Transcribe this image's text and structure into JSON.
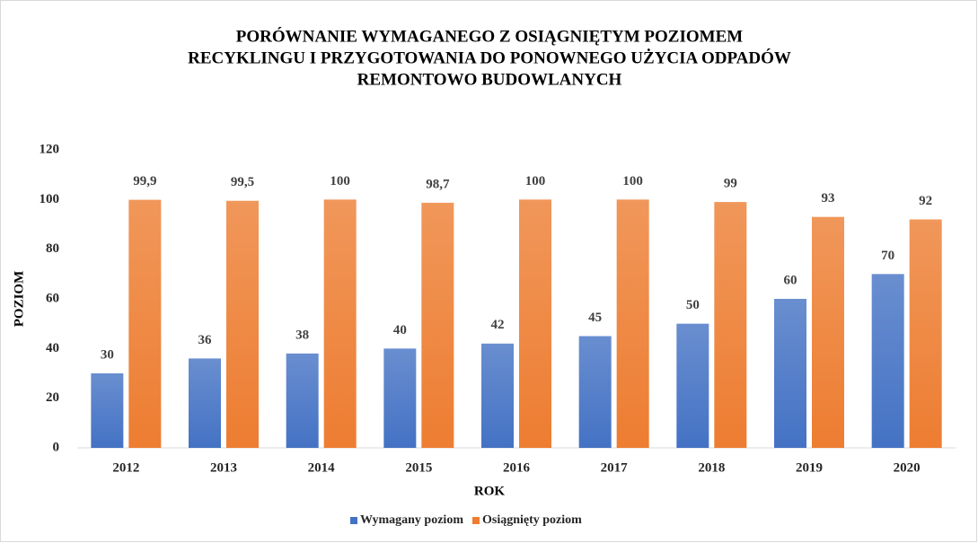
{
  "chart_data": {
    "type": "bar",
    "title": [
      "PORÓWNANIE WYMAGANEGO Z OSIĄGNIĘTYM POZIOMEM",
      "RECYKLINGU I PRZYGOTOWANIA DO PONOWNEGO UŻYCIA ODPADÓW",
      "REMONTOWO BUDOWLANYCH"
    ],
    "x_label": "ROK",
    "y_label": "POZIOM",
    "categories": [
      "2012",
      "2013",
      "2014",
      "2015",
      "2016",
      "2017",
      "2018",
      "2019",
      "2020"
    ],
    "series": [
      {
        "name": "Wymagany poziom",
        "color": "#4472c4",
        "values": [
          30,
          36,
          38,
          40,
          42,
          45,
          50,
          60,
          70
        ]
      },
      {
        "name": "Osiągnięty poziom",
        "color": "#ed7d31",
        "values": [
          99.9,
          99.5,
          100,
          98.7,
          100,
          100,
          99,
          93,
          92
        ],
        "value_labels": [
          "99,9",
          "99,5",
          "100",
          "98,7",
          "100",
          "100",
          "99",
          "93",
          "92"
        ]
      }
    ],
    "ylim": [
      0,
      120
    ],
    "yticks": [
      0,
      20,
      40,
      60,
      80,
      100,
      120
    ],
    "grid": false,
    "legend": "bottom"
  }
}
